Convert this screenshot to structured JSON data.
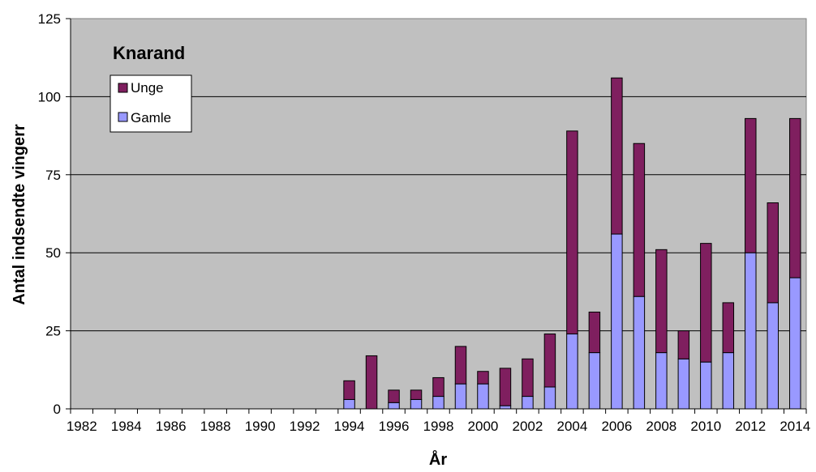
{
  "chart_data": {
    "type": "bar",
    "stacked": true,
    "title": "Knarand",
    "xlabel": "År",
    "ylabel": "Antal indsendte vingerr",
    "ylim": [
      0,
      125
    ],
    "yticks": [
      "0",
      "25",
      "50",
      "75",
      "100",
      "125"
    ],
    "categories": [
      "1982",
      "1983",
      "1984",
      "1985",
      "1986",
      "1987",
      "1988",
      "1989",
      "1990",
      "1991",
      "1992",
      "1993",
      "1994",
      "1995",
      "1996",
      "1997",
      "1998",
      "1999",
      "2000",
      "2001",
      "2002",
      "2003",
      "2004",
      "2005",
      "2006",
      "2007",
      "2008",
      "2009",
      "2010",
      "2011",
      "2012",
      "2013",
      "2014"
    ],
    "xtick_labels": [
      "1982",
      "1984",
      "1986",
      "1988",
      "1990",
      "1992",
      "1994",
      "1996",
      "1998",
      "2000",
      "2002",
      "2004",
      "2006",
      "2008",
      "2010",
      "2012",
      "2014"
    ],
    "series": [
      {
        "name": "Gamle",
        "color": "#9999ff",
        "values": [
          0,
          0,
          0,
          0,
          0,
          0,
          0,
          0,
          0,
          0,
          0,
          0,
          3,
          0,
          2,
          3,
          4,
          8,
          8,
          1,
          4,
          7,
          24,
          18,
          56,
          36,
          18,
          16,
          15,
          18,
          50,
          34,
          42
        ]
      },
      {
        "name": "Unge",
        "color": "#7f1f5f",
        "values": [
          0,
          0,
          0,
          0,
          0,
          0,
          0,
          0,
          0,
          0,
          0,
          0,
          6,
          17,
          4,
          3,
          6,
          12,
          4,
          12,
          12,
          17,
          65,
          13,
          50,
          49,
          33,
          9,
          38,
          16,
          43,
          32,
          51
        ]
      }
    ],
    "legend": {
      "position": "top-left",
      "order": [
        "Unge",
        "Gamle"
      ]
    },
    "grid": true,
    "plot_background": "#c0c0c0"
  }
}
